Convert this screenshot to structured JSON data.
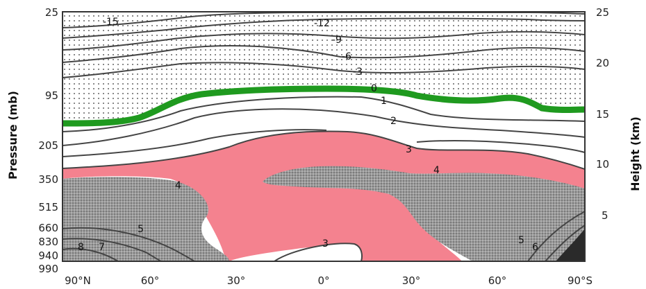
{
  "chart_data": {
    "type": "contour",
    "ylabel_left": "Pressure (mb)",
    "ylabel_right": "Height (km)",
    "x_ticks": [
      "90°N",
      "60°",
      "30°",
      "0°",
      "30°",
      "60°",
      "90°S"
    ],
    "pressure_ticks": [
      "25",
      "95",
      "205",
      "350",
      "515",
      "660",
      "830",
      "940",
      "990"
    ],
    "height_ticks": [
      "25",
      "20",
      "15",
      "10",
      "5"
    ],
    "contour_labels": [
      "-15",
      "-12",
      "-9",
      "-6",
      "-3",
      "0",
      "1",
      "2",
      "3",
      "4",
      "4",
      "5",
      "7",
      "8",
      "3",
      "5",
      "6"
    ],
    "colors": {
      "zero_line": "#1f9a1f",
      "band_3": "#f4828f",
      "band_4_plus": "#9a9a9a",
      "stipple": "#333333"
    }
  }
}
